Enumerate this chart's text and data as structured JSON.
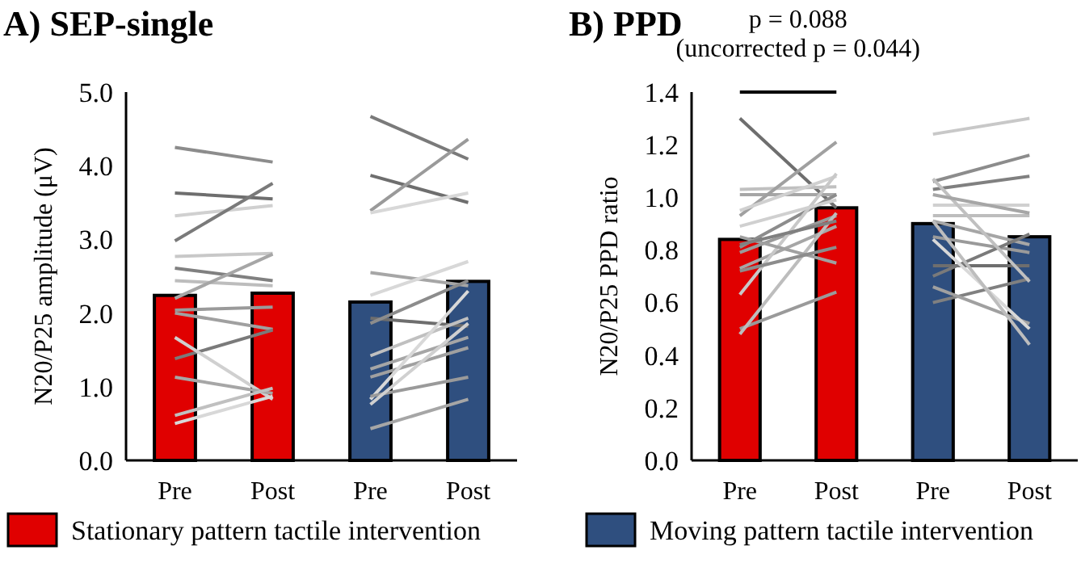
{
  "chart_data": [
    {
      "type": "bar",
      "title": "A) SEP-single",
      "ylabel": "N20/P25 amplitude (μV)",
      "categories": [
        "Pre",
        "Post",
        "Pre",
        "Post"
      ],
      "ylim": [
        0,
        5
      ],
      "yticks": [
        {
          "value": 0,
          "label": "0.0"
        },
        {
          "value": 1,
          "label": "1.0"
        },
        {
          "value": 2,
          "label": "2.0"
        },
        {
          "value": 3,
          "label": "3.0"
        },
        {
          "value": 4,
          "label": "4.0"
        },
        {
          "value": 5,
          "label": "5.0"
        }
      ],
      "legend": "bottom",
      "series": [
        {
          "name": "Stationary pattern tactile intervention",
          "color": "#e00000",
          "values": [
            2.24,
            2.27,
            null,
            null
          ]
        },
        {
          "name": "Moving pattern tactile intervention",
          "color": "#2f4f7f",
          "values": [
            null,
            null,
            2.15,
            2.43
          ]
        },
        {
          "type": "line",
          "color": "#8c8c8c",
          "values": [
            4.25,
            4.05,
            null,
            null
          ]
        },
        {
          "type": "line",
          "color": "#6e6e6e",
          "values": [
            3.63,
            3.55,
            null,
            null
          ]
        },
        {
          "type": "line",
          "color": "#d0d0d0",
          "values": [
            3.32,
            3.46,
            null,
            null
          ]
        },
        {
          "type": "line",
          "color": "#7a7a7a",
          "values": [
            2.98,
            3.76,
            null,
            null
          ]
        },
        {
          "type": "line",
          "color": "#c8c8c8",
          "values": [
            2.77,
            2.81,
            null,
            null
          ]
        },
        {
          "type": "line",
          "color": "#808080",
          "values": [
            2.61,
            2.44,
            null,
            null
          ]
        },
        {
          "type": "line",
          "color": "#bdbdbd",
          "values": [
            2.44,
            2.37,
            null,
            null
          ]
        },
        {
          "type": "line",
          "color": "#a6a6a6",
          "values": [
            2.2,
            2.8,
            null,
            null
          ]
        },
        {
          "type": "line",
          "color": "#9a9a9a",
          "values": [
            2.04,
            2.08,
            null,
            null
          ]
        },
        {
          "type": "line",
          "color": "#a0a0a0",
          "values": [
            2.0,
            1.78,
            null,
            null
          ]
        },
        {
          "type": "line",
          "color": "#7a7a7a",
          "values": [
            1.38,
            1.77,
            null,
            null
          ]
        },
        {
          "type": "line",
          "color": "#d0d0d0",
          "values": [
            1.67,
            0.83,
            null,
            null
          ]
        },
        {
          "type": "line",
          "color": "#a6a6a6",
          "values": [
            1.13,
            0.91,
            null,
            null
          ]
        },
        {
          "type": "line",
          "color": "#c0c0c0",
          "values": [
            0.61,
            0.98,
            null,
            null
          ]
        },
        {
          "type": "line",
          "color": "#d8d8d8",
          "values": [
            0.5,
            0.87,
            null,
            null
          ]
        },
        {
          "type": "line",
          "color": "#7a7a7a",
          "values": [
            null,
            null,
            4.67,
            4.09
          ]
        },
        {
          "type": "line",
          "color": "#6e6e6e",
          "values": [
            null,
            null,
            3.87,
            3.5
          ]
        },
        {
          "type": "line",
          "color": "#9a9a9a",
          "values": [
            null,
            null,
            3.39,
            4.36
          ]
        },
        {
          "type": "line",
          "color": "#d8d8d8",
          "values": [
            null,
            null,
            3.36,
            3.63
          ]
        },
        {
          "type": "line",
          "color": "#a6a6a6",
          "values": [
            null,
            null,
            2.55,
            2.37
          ]
        },
        {
          "type": "line",
          "color": "#d8d8d8",
          "values": [
            null,
            null,
            2.24,
            2.7
          ]
        },
        {
          "type": "line",
          "color": "#6e6e6e",
          "values": [
            null,
            null,
            1.93,
            1.82
          ]
        },
        {
          "type": "line",
          "color": "#8c8c8c",
          "values": [
            null,
            null,
            1.86,
            2.44
          ]
        },
        {
          "type": "line",
          "color": "#c0c0c0",
          "values": [
            null,
            null,
            1.42,
            1.93
          ]
        },
        {
          "type": "line",
          "color": "#a6a6a6",
          "values": [
            null,
            null,
            1.24,
            1.67
          ]
        },
        {
          "type": "line",
          "color": "#a0a0a0",
          "values": [
            null,
            null,
            1.13,
            1.53
          ]
        },
        {
          "type": "line",
          "color": "#d8d8d8",
          "values": [
            null,
            null,
            0.83,
            2.3
          ]
        },
        {
          "type": "line",
          "color": "#9a9a9a",
          "values": [
            null,
            null,
            0.87,
            1.13
          ]
        },
        {
          "type": "line",
          "color": "#a6a6a6",
          "values": [
            null,
            null,
            0.43,
            0.83
          ]
        },
        {
          "type": "line",
          "color": "#d0d0d0",
          "values": [
            null,
            null,
            0.76,
            1.86
          ]
        }
      ]
    },
    {
      "type": "bar",
      "title": "B) PPD",
      "ylabel": "N20/P25 PPD ratio",
      "annotations": [
        "p = 0.088",
        "(uncorrected p = 0.044)"
      ],
      "categories": [
        "Pre",
        "Post",
        "Pre",
        "Post"
      ],
      "ylim": [
        0,
        1.4
      ],
      "yticks": [
        {
          "value": 0,
          "label": "0.0"
        },
        {
          "value": 0.2,
          "label": "0.2"
        },
        {
          "value": 0.4,
          "label": "0.4"
        },
        {
          "value": 0.6,
          "label": "0.6"
        },
        {
          "value": 0.8,
          "label": "0.8"
        },
        {
          "value": 1,
          "label": "1.0"
        },
        {
          "value": 1.2,
          "label": "1.2"
        },
        {
          "value": 1.4,
          "label": "1.4"
        }
      ],
      "series": [
        {
          "color": "#e00000",
          "values": [
            0.84,
            0.96,
            null,
            null
          ]
        },
        {
          "color": "#2f4f7f",
          "values": [
            null,
            null,
            0.9,
            0.85
          ]
        },
        {
          "type": "line",
          "color": "#6e6e6e",
          "values": [
            1.3,
            0.96,
            null,
            null
          ]
        },
        {
          "type": "line",
          "color": "#c0c0c0",
          "values": [
            1.03,
            1.04,
            null,
            null
          ]
        },
        {
          "type": "line",
          "color": "#a6a6a6",
          "values": [
            1.01,
            1.01,
            null,
            null
          ]
        },
        {
          "type": "line",
          "color": "#a0a0a0",
          "values": [
            0.93,
            1.21,
            null,
            null
          ]
        },
        {
          "type": "line",
          "color": "#d0d0d0",
          "values": [
            0.95,
            1.08,
            null,
            null
          ]
        },
        {
          "type": "line",
          "color": "#8c8c8c",
          "values": [
            0.81,
            1.01,
            null,
            null
          ]
        },
        {
          "type": "line",
          "color": "#9a9a9a",
          "values": [
            0.79,
            0.93,
            null,
            null
          ]
        },
        {
          "type": "line",
          "color": "#a6a6a6",
          "values": [
            0.73,
            0.89,
            null,
            null
          ]
        },
        {
          "type": "line",
          "color": "#c8c8c8",
          "values": [
            0.63,
            1.09,
            null,
            null
          ]
        },
        {
          "type": "line",
          "color": "#9a9a9a",
          "values": [
            0.5,
            0.64,
            null,
            null
          ]
        },
        {
          "type": "line",
          "color": "#bdbdbd",
          "values": [
            0.48,
            0.94,
            null,
            null
          ]
        },
        {
          "type": "line",
          "color": "#a0a0a0",
          "values": [
            0.85,
            0.75,
            null,
            null
          ]
        },
        {
          "type": "line",
          "color": "#808080",
          "values": [
            0.82,
            0.91,
            null,
            null
          ]
        },
        {
          "type": "line",
          "color": "#8c8c8c",
          "values": [
            0.72,
            0.81,
            null,
            null
          ]
        },
        {
          "type": "line",
          "color": "#d0d0d0",
          "values": [
            0.89,
            0.99,
            null,
            null
          ]
        },
        {
          "type": "line",
          "color": "#c8c8c8",
          "values": [
            null,
            null,
            1.24,
            1.3
          ]
        },
        {
          "type": "line",
          "color": "#8c8c8c",
          "values": [
            null,
            null,
            1.06,
            1.16
          ]
        },
        {
          "type": "line",
          "color": "#808080",
          "values": [
            null,
            null,
            1.03,
            1.08
          ]
        },
        {
          "type": "line",
          "color": "#d0d0d0",
          "values": [
            null,
            null,
            0.97,
            0.97
          ]
        },
        {
          "type": "line",
          "color": "#bdbdbd",
          "values": [
            null,
            null,
            0.93,
            0.93
          ]
        },
        {
          "type": "line",
          "color": "#a6a6a6",
          "values": [
            null,
            null,
            0.91,
            0.82
          ]
        },
        {
          "type": "line",
          "color": "#9a9a9a",
          "values": [
            null,
            null,
            0.85,
            0.79
          ]
        },
        {
          "type": "line",
          "color": "#6e6e6e",
          "values": [
            null,
            null,
            0.74,
            0.74
          ]
        },
        {
          "type": "line",
          "color": "#7a7a7a",
          "values": [
            null,
            null,
            0.7,
            0.86
          ]
        },
        {
          "type": "line",
          "color": "#808080",
          "values": [
            null,
            null,
            0.6,
            0.69
          ]
        },
        {
          "type": "line",
          "color": "#a0a0a0",
          "values": [
            null,
            null,
            0.66,
            0.52
          ]
        },
        {
          "type": "line",
          "color": "#d8d8d8",
          "values": [
            null,
            null,
            0.84,
            0.5
          ]
        },
        {
          "type": "line",
          "color": "#c0c0c0",
          "values": [
            null,
            null,
            1.07,
            0.68
          ]
        },
        {
          "type": "line",
          "color": "#a6a6a6",
          "values": [
            null,
            null,
            1.01,
            0.94
          ]
        },
        {
          "type": "line",
          "color": "#bdbdbd",
          "values": [
            null,
            null,
            0.91,
            0.44
          ]
        }
      ]
    }
  ]
}
